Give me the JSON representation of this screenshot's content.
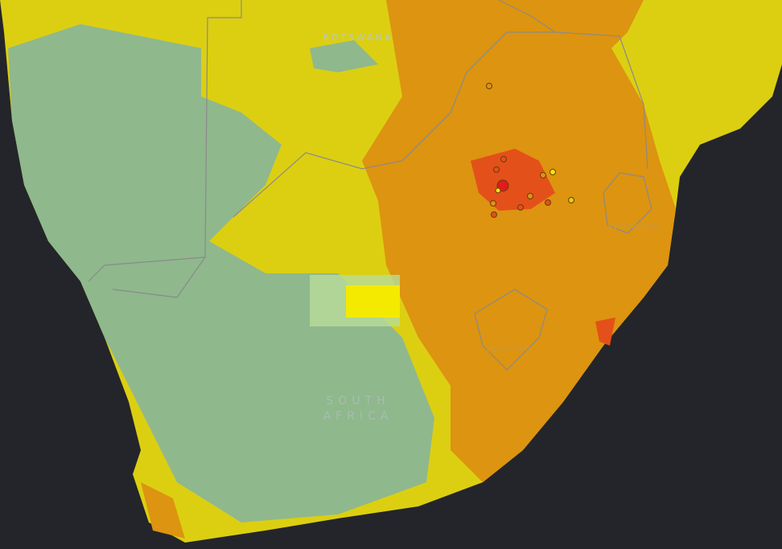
{
  "labels": {
    "botswana": "BOTSWANA",
    "swaziland": "SWAZILAND",
    "lesotho": "LESOTHO",
    "south_africa": [
      "SOUTH",
      "AFRICA"
    ]
  }
}
